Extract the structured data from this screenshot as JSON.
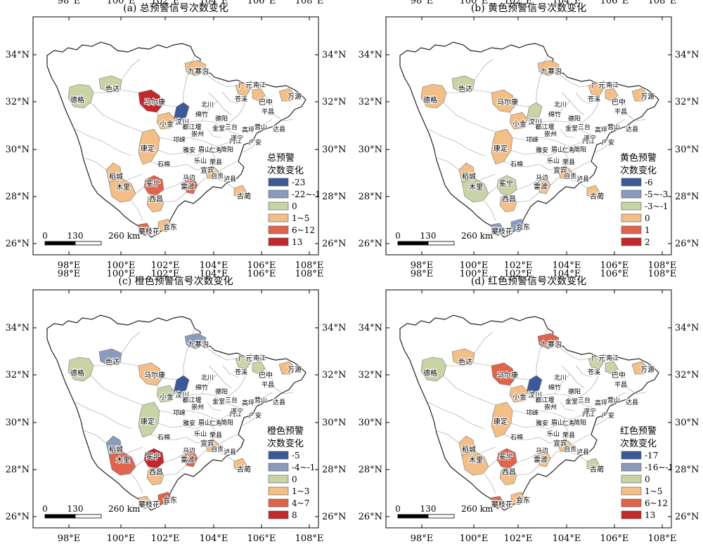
{
  "panels": [
    {
      "title": "(a) 总预警信号次数变化",
      "legend_title": [
        "总预警",
        "次数变化"
      ],
      "legend": [
        {
          "label": "-23",
          "color": "#3d5a98"
        },
        {
          "label": "-22~-1",
          "color": "#8a9bbd"
        },
        {
          "label": "0",
          "color": "#c8d3a6"
        },
        {
          "label": "1~5",
          "color": "#f3bf87"
        },
        {
          "label": "6~12",
          "color": "#e0634b"
        },
        {
          "label": "13",
          "color": "#c2282c"
        }
      ],
      "regions": [
        {
          "name": "德格",
          "cls": 2
        },
        {
          "name": "色达",
          "cls": 2
        },
        {
          "name": "马尔康",
          "cls": 5
        },
        {
          "name": "九寨沟",
          "cls": 3
        },
        {
          "name": "汶川",
          "cls": 0
        },
        {
          "name": "小金",
          "cls": 3
        },
        {
          "name": "康定",
          "cls": 3
        },
        {
          "name": "稻城",
          "cls": 3
        },
        {
          "name": "木里",
          "cls": 3
        },
        {
          "name": "冕宁",
          "cls": 4
        },
        {
          "name": "西昌",
          "cls": 3
        },
        {
          "name": "会东",
          "cls": 3
        },
        {
          "name": "攀枝花",
          "cls": 4
        },
        {
          "name": "雷波",
          "cls": 4
        },
        {
          "name": "宜宾",
          "cls": 3
        },
        {
          "name": "古蔺",
          "cls": 3
        },
        {
          "name": "万源",
          "cls": 3
        },
        {
          "name": "广元",
          "cls": 3
        },
        {
          "name": "巴中",
          "cls": 3
        }
      ]
    },
    {
      "title": "(b) 黄色预警信号次数变化",
      "legend_title": [
        "黄色预警",
        "次数变化"
      ],
      "legend": [
        {
          "label": "-6",
          "color": "#3d5a98"
        },
        {
          "label": "-5~-3",
          "color": "#8a9bbd"
        },
        {
          "label": "-3~-1",
          "color": "#c8d3a6"
        },
        {
          "label": "0",
          "color": "#f3bf87"
        },
        {
          "label": "1",
          "color": "#e0634b"
        },
        {
          "label": "2",
          "color": "#c2282c"
        }
      ],
      "regions": [
        {
          "name": "德格",
          "cls": 3
        },
        {
          "name": "色达",
          "cls": 2
        },
        {
          "name": "马尔康",
          "cls": 3
        },
        {
          "name": "九寨沟",
          "cls": 3
        },
        {
          "name": "汶川",
          "cls": 2
        },
        {
          "name": "小金",
          "cls": 3
        },
        {
          "name": "康定",
          "cls": 3
        },
        {
          "name": "稻城",
          "cls": 3
        },
        {
          "name": "木里",
          "cls": 2
        },
        {
          "name": "冕宁",
          "cls": 2
        },
        {
          "name": "西昌",
          "cls": 3
        },
        {
          "name": "会东",
          "cls": 1
        },
        {
          "name": "攀枝花",
          "cls": 1
        },
        {
          "name": "雷波",
          "cls": 3
        },
        {
          "name": "宜宾",
          "cls": 3
        },
        {
          "name": "古蔺",
          "cls": 3
        },
        {
          "name": "万源",
          "cls": 3
        },
        {
          "name": "广元",
          "cls": 3
        },
        {
          "name": "巴中",
          "cls": 3
        }
      ]
    },
    {
      "title": "(c) 橙色预警信号次数变化",
      "legend_title": [
        "橙色预警",
        "次数变化"
      ],
      "legend": [
        {
          "label": "-5",
          "color": "#3d5a98"
        },
        {
          "label": "-4~-1",
          "color": "#8a9bbd"
        },
        {
          "label": "0",
          "color": "#c8d3a6"
        },
        {
          "label": "1~3",
          "color": "#f3bf87"
        },
        {
          "label": "4~7",
          "color": "#e0634b"
        },
        {
          "label": "8",
          "color": "#c2282c"
        }
      ],
      "regions": [
        {
          "name": "德格",
          "cls": 2
        },
        {
          "name": "色达",
          "cls": 1
        },
        {
          "name": "马尔康",
          "cls": 3
        },
        {
          "name": "九寨沟",
          "cls": 1
        },
        {
          "name": "汶川",
          "cls": 0
        },
        {
          "name": "小金",
          "cls": 2
        },
        {
          "name": "康定",
          "cls": 2
        },
        {
          "name": "稻城",
          "cls": 1
        },
        {
          "name": "木里",
          "cls": 4
        },
        {
          "name": "冕宁",
          "cls": 5
        },
        {
          "name": "西昌",
          "cls": 3
        },
        {
          "name": "会东",
          "cls": 4
        },
        {
          "name": "攀枝花",
          "cls": 3
        },
        {
          "name": "雷波",
          "cls": 4
        },
        {
          "name": "宜宾",
          "cls": 3
        },
        {
          "name": "古蔺",
          "cls": 3
        },
        {
          "name": "万源",
          "cls": 3
        },
        {
          "name": "广元",
          "cls": 2
        },
        {
          "name": "巴中",
          "cls": 2
        }
      ]
    },
    {
      "title": "(d) 红色预警信号次数变化",
      "legend_title": [
        "红色预警",
        "次数变化"
      ],
      "legend": [
        {
          "label": "-17",
          "color": "#3d5a98"
        },
        {
          "label": "-16~-1",
          "color": "#8a9bbd"
        },
        {
          "label": "0",
          "color": "#c8d3a6"
        },
        {
          "label": "1~5",
          "color": "#f3bf87"
        },
        {
          "label": "6~12",
          "color": "#e0634b"
        },
        {
          "label": "13",
          "color": "#c2282c"
        }
      ],
      "regions": [
        {
          "name": "德格",
          "cls": 2
        },
        {
          "name": "色达",
          "cls": 3
        },
        {
          "name": "马尔康",
          "cls": 4
        },
        {
          "name": "九寨沟",
          "cls": 4
        },
        {
          "name": "汶川",
          "cls": 0
        },
        {
          "name": "小金",
          "cls": 3
        },
        {
          "name": "康定",
          "cls": 3
        },
        {
          "name": "稻城",
          "cls": 3
        },
        {
          "name": "木里",
          "cls": 3
        },
        {
          "name": "冕宁",
          "cls": 4
        },
        {
          "name": "西昌",
          "cls": 3
        },
        {
          "name": "会东",
          "cls": 3
        },
        {
          "name": "攀枝花",
          "cls": 4
        },
        {
          "name": "雷波",
          "cls": 3
        },
        {
          "name": "宜宾",
          "cls": 3
        },
        {
          "name": "古蔺",
          "cls": 2
        },
        {
          "name": "万源",
          "cls": 3
        },
        {
          "name": "广元",
          "cls": 2
        },
        {
          "name": "巴中",
          "cls": 2
        }
      ]
    }
  ],
  "lon_ticks": [
    "98°E",
    "100°E",
    "102°E",
    "104°E",
    "106°E",
    "108°E"
  ],
  "lat_ticks": [
    "34°N",
    "32°N",
    "30°N",
    "28°N",
    "26°N"
  ],
  "scale_bar": {
    "labels": [
      "0",
      "130",
      "260 km"
    ]
  },
  "other_labels": [
    "北川",
    "绵竹",
    "德阳",
    "都江堰",
    "崇州",
    "金堂",
    "三台",
    "邛崃",
    "雅安",
    "眉山",
    "仁寿",
    "简阳",
    "乐山",
    "荣县",
    "石棉",
    "马边",
    "内江",
    "自贡",
    "泸县",
    "苍溪",
    "南江",
    "平昌",
    "营山",
    "达县",
    "高坪",
    "遂宁",
    "广安"
  ]
}
